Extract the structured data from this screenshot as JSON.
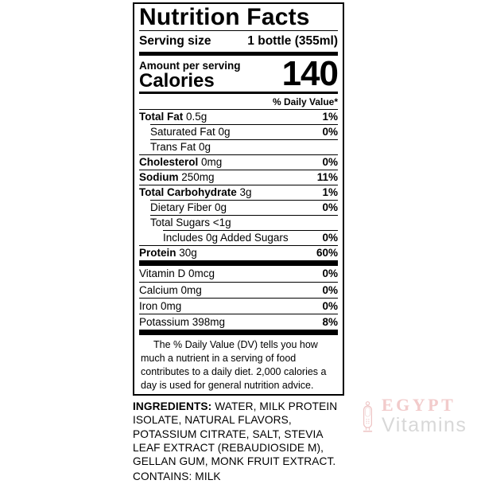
{
  "label": {
    "title": "Nutrition Facts",
    "serving_size_label": "Serving size",
    "serving_size_value": "1 bottle (355ml)",
    "amount_per_serving": "Amount per serving",
    "calories_label": "Calories",
    "calories_value": "140",
    "daily_value_header": "% Daily Value*",
    "nutrients": [
      {
        "name": "Total Fat",
        "value": "0.5g",
        "pct": "1%",
        "bold": true,
        "indent": 0
      },
      {
        "name": "Saturated Fat",
        "value": "0g",
        "pct": "0%",
        "bold": false,
        "indent": 1
      },
      {
        "name": "Trans Fat",
        "value": "0g",
        "pct": "",
        "bold": false,
        "indent": 1
      },
      {
        "name": "Cholesterol",
        "value": "0mg",
        "pct": "0%",
        "bold": true,
        "indent": 0
      },
      {
        "name": "Sodium",
        "value": "250mg",
        "pct": "11%",
        "bold": true,
        "indent": 0
      },
      {
        "name": "Total Carbohydrate",
        "value": "3g",
        "pct": "1%",
        "bold": true,
        "indent": 0
      },
      {
        "name": "Dietary Fiber",
        "value": "0g",
        "pct": "0%",
        "bold": false,
        "indent": 1
      },
      {
        "name": "Total Sugars",
        "value": "<1g",
        "pct": "",
        "bold": false,
        "indent": 1
      },
      {
        "name": "Includes 0g Added Sugars",
        "value": "",
        "pct": "0%",
        "bold": false,
        "indent": 2
      },
      {
        "name": "Protein",
        "value": "30g",
        "pct": "60%",
        "bold": true,
        "indent": 0
      }
    ],
    "vitamins": [
      {
        "name": "Vitamin D",
        "value": "0mcg",
        "pct": "0%"
      },
      {
        "name": "Calcium",
        "value": "0mg",
        "pct": "0%"
      },
      {
        "name": "Iron",
        "value": "0mg",
        "pct": "0%"
      },
      {
        "name": "Potassium",
        "value": "398mg",
        "pct": "8%"
      }
    ],
    "footnote": "The % Daily Value (DV) tells you how much a nutrient in a serving of food contributes to a daily diet. 2,000 calories a day is used for general nutrition advice."
  },
  "ingredients": {
    "label": "INGREDIENTS:",
    "text": "WATER, MILK PROTEIN ISOLATE, NATURAL FLAVORS, POTASSIUM CITRATE, SALT, STEVIA LEAF EXTRACT (REBAUDIOSIDE M), GELLAN GUM, MONK FRUIT EXTRACT.",
    "contains": "CONTAINS: MILK"
  },
  "watermark": {
    "brand": "EGYPT",
    "sub": "Vitamins",
    "brand_color": "#f2cbcb",
    "sub_color": "#d8d8d8",
    "icon_color": "#eec5c5"
  }
}
